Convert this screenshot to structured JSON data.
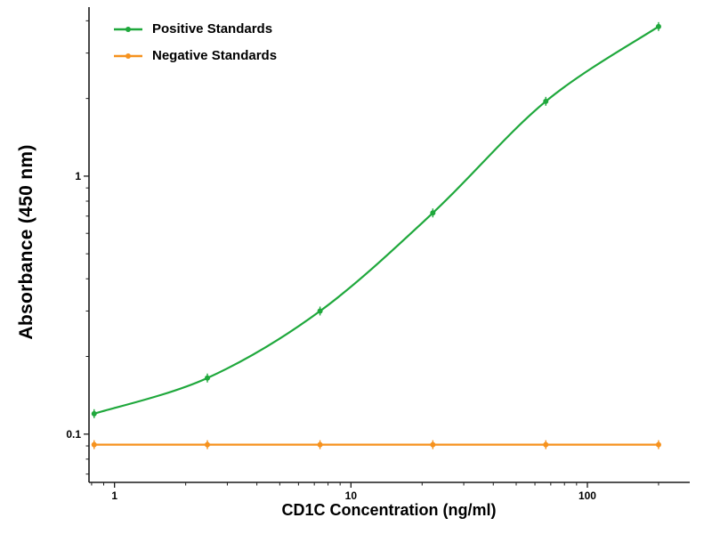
{
  "figure": {
    "xlabel": "CD1C Concentration (ng/ml)",
    "ylabel": "Absorbance (450 nm)"
  },
  "chart_data": {
    "type": "line",
    "title": "",
    "xlabel": "CD1C Concentration (ng/ml)",
    "ylabel": "Absorbance (450 nm)",
    "x_scale": "log",
    "y_scale": "log",
    "xlim": [
      0.78,
      271
    ],
    "ylim": [
      0.065,
      4.52
    ],
    "x_ticks": [
      1,
      10,
      100
    ],
    "x_tick_labels": [
      "1",
      "10",
      "100"
    ],
    "y_ticks": [
      0.1,
      1
    ],
    "y_tick_labels": [
      "0.1",
      "1"
    ],
    "grid": false,
    "legend_position": "top-left",
    "x": [
      0.82,
      2.47,
      7.4,
      22.2,
      66.7,
      200
    ],
    "series": [
      {
        "name": "Positive Standards",
        "color": "#1fa83c",
        "values": [
          0.12,
          0.165,
          0.3,
          0.72,
          1.95,
          3.8
        ],
        "smooth": true,
        "marker": "dot-with-error-bar"
      },
      {
        "name": "Negative Standards",
        "color": "#f6921e",
        "values": [
          0.091,
          0.091,
          0.091,
          0.091,
          0.091,
          0.091
        ],
        "smooth": false,
        "marker": "dot-with-error-bar"
      }
    ],
    "axis_color": "#1a1a1a",
    "text_color": "#000000"
  }
}
